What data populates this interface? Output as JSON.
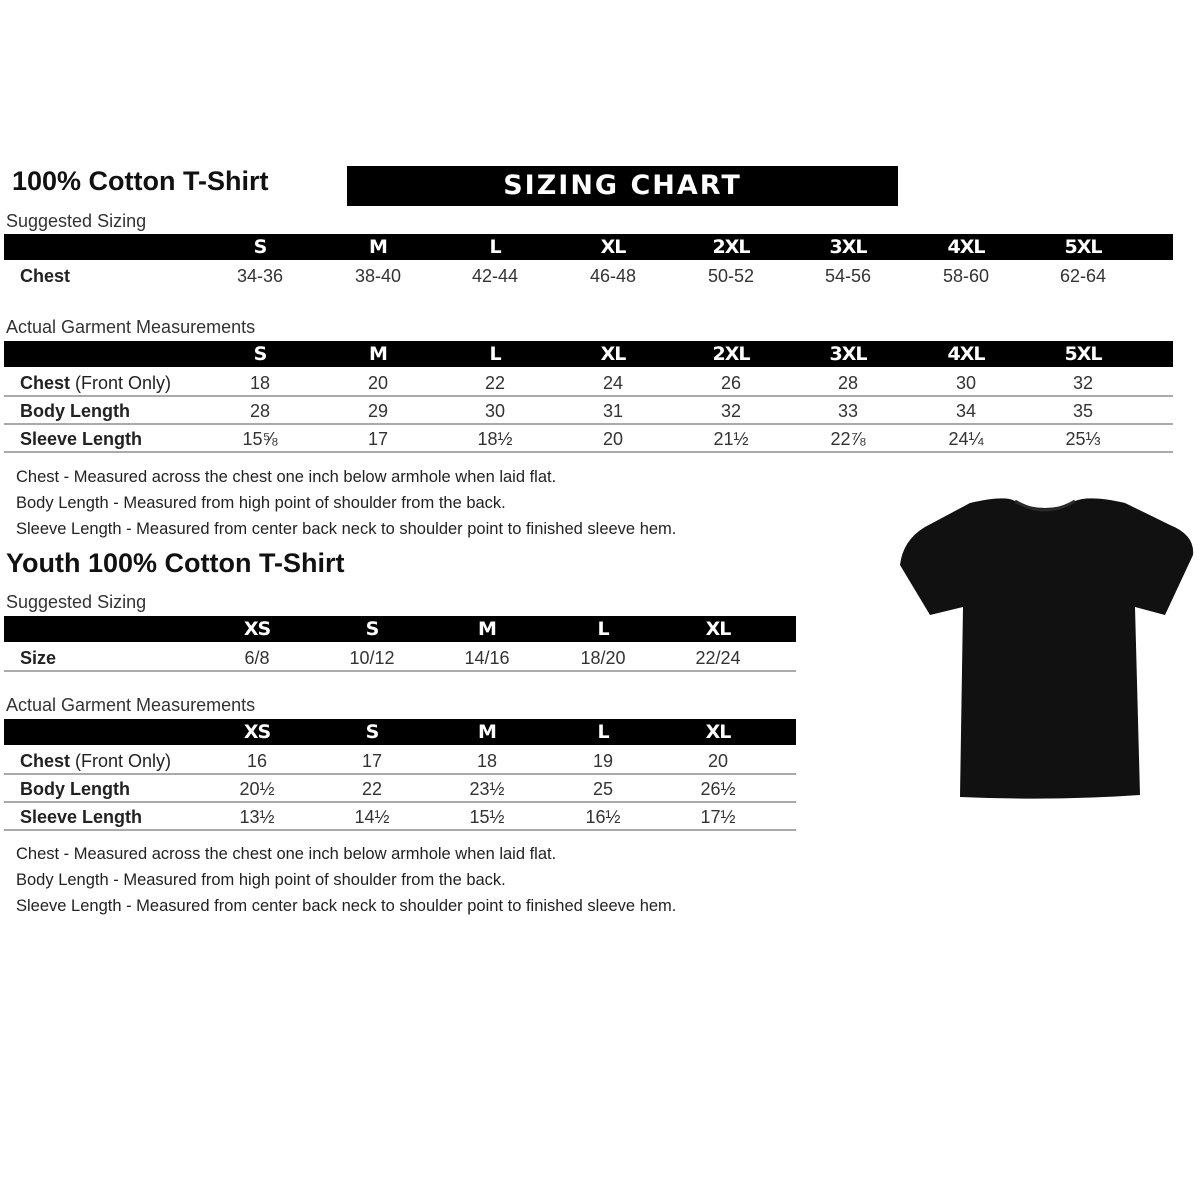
{
  "adult": {
    "title": "100% Cotton T-Shirt",
    "banner": "SIZING CHART",
    "suggested": {
      "label": "Suggested Sizing",
      "sizes": [
        "S",
        "M",
        "L",
        "XL",
        "2XL",
        "3XL",
        "4XL",
        "5XL"
      ],
      "rows": [
        {
          "label": "Chest",
          "values": [
            "34-36",
            "38-40",
            "42-44",
            "46-48",
            "50-52",
            "54-56",
            "58-60",
            "62-64"
          ]
        }
      ]
    },
    "actual": {
      "label": "Actual Garment Measurements",
      "sizes": [
        "S",
        "M",
        "L",
        "XL",
        "2XL",
        "3XL",
        "4XL",
        "5XL"
      ],
      "rows": [
        {
          "label": "Chest",
          "sublabel": "(Front Only)",
          "values": [
            "18",
            "20",
            "22",
            "24",
            "26",
            "28",
            "30",
            "32"
          ]
        },
        {
          "label": "Body Length",
          "values": [
            "28",
            "29",
            "30",
            "31",
            "32",
            "33",
            "34",
            "35"
          ]
        },
        {
          "label": "Sleeve Length",
          "values": [
            "15⅝",
            "17",
            "18½",
            "20",
            "21½",
            "22⅞",
            "24¼",
            "25⅓"
          ]
        }
      ]
    },
    "notes": [
      "Chest - Measured across the chest one inch below armhole when laid flat.",
      "Body Length - Measured from high point of shoulder from the back.",
      "Sleeve Length - Measured from center back neck to shoulder point to finished sleeve hem."
    ]
  },
  "youth": {
    "title": "Youth 100% Cotton T-Shirt",
    "suggested": {
      "label": "Suggested Sizing",
      "sizes": [
        "XS",
        "S",
        "M",
        "L",
        "XL"
      ],
      "rows": [
        {
          "label": "Size",
          "values": [
            "6/8",
            "10/12",
            "14/16",
            "18/20",
            "22/24"
          ]
        }
      ]
    },
    "actual": {
      "label": "Actual Garment Measurements",
      "sizes": [
        "XS",
        "S",
        "M",
        "L",
        "XL"
      ],
      "rows": [
        {
          "label": "Chest",
          "sublabel": "(Front Only)",
          "values": [
            "16",
            "17",
            "18",
            "19",
            "20"
          ]
        },
        {
          "label": "Body Length",
          "values": [
            "20½",
            "22",
            "23½",
            "25",
            "26½"
          ]
        },
        {
          "label": "Sleeve Length",
          "values": [
            "13½",
            "14½",
            "15½",
            "16½",
            "17½"
          ]
        }
      ]
    },
    "notes": [
      "Chest - Measured across the chest one inch below armhole when laid flat.",
      "Body Length - Measured from high point of shoulder from the back.",
      "Sleeve Length - Measured from center back neck to shoulder point to finished sleeve hem."
    ]
  },
  "colors": {
    "header_bar": "#000000",
    "shirt": "#111111",
    "row_divider": "#aaaaaa"
  }
}
